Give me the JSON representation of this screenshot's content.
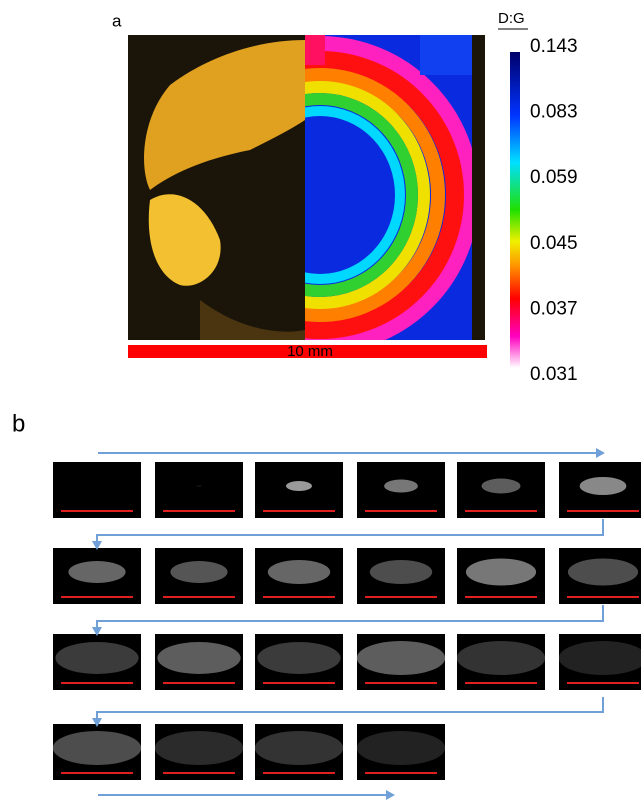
{
  "panel_a": {
    "label": "a",
    "scale_bar": "10 mm",
    "colorbar": {
      "title": "D:G",
      "ticks": [
        "0.143",
        "0.083",
        "0.059",
        "0.045",
        "0.037",
        "0.031"
      ]
    }
  },
  "panel_b": {
    "label": "b"
  }
}
